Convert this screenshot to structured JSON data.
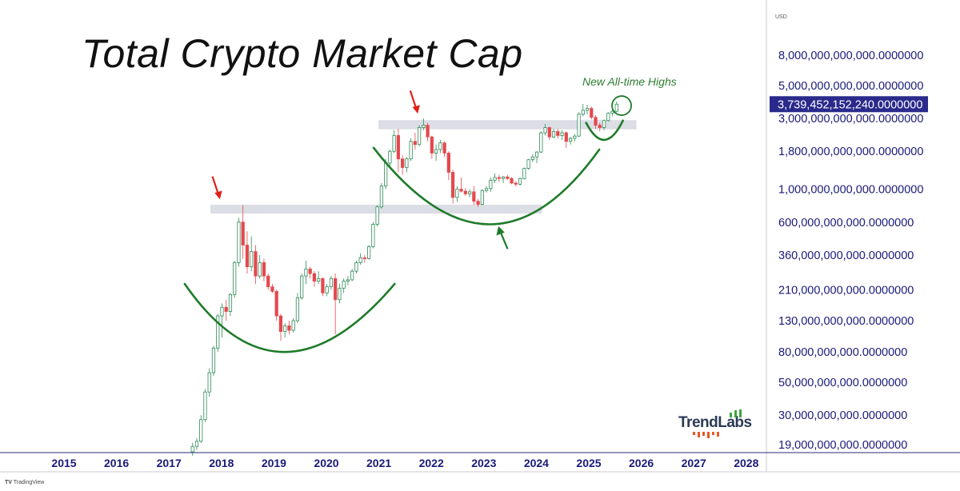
{
  "title": "Total Crypto Market Cap",
  "annotation": "New All-time Highs",
  "currency": "USD",
  "footer": "TradingView",
  "watermark": "TrendLabs",
  "colors": {
    "up": "#2e8b57",
    "down": "#e5484d",
    "curve": "#1e7b2a",
    "arrow_red": "#e0201b",
    "arrow_green": "#1e7b2a",
    "axis_text": "#1a1a7a",
    "price_badge": "#2a2a8c",
    "band": "#d9dbe3"
  },
  "chart_data": {
    "type": "candlestick",
    "title": "Total Crypto Market Cap",
    "interval": "monthly",
    "y_scale": "log",
    "y_ticks": [
      {
        "value": 8000000000000,
        "label": "8,000,000,000,000.0000000"
      },
      {
        "value": 5000000000000,
        "label": "5,000,000,000,000.0000000"
      },
      {
        "value": 3000000000000,
        "label": "3,000,000,000,000.0000000"
      },
      {
        "value": 1800000000000,
        "label": "1,800,000,000,000.0000000"
      },
      {
        "value": 1000000000000,
        "label": "1,000,000,000,000.0000000"
      },
      {
        "value": 600000000000,
        "label": "600,000,000,000.0000000"
      },
      {
        "value": 360000000000,
        "label": "360,000,000,000.0000000"
      },
      {
        "value": 210000000000,
        "label": "210,000,000,000.0000000"
      },
      {
        "value": 130000000000,
        "label": "130,000,000,000.0000000"
      },
      {
        "value": 80000000000,
        "label": "80,000,000,000.0000000"
      },
      {
        "value": 50000000000,
        "label": "50,000,000,000.0000000"
      },
      {
        "value": 30000000000,
        "label": "30,000,000,000.0000000"
      },
      {
        "value": 19000000000,
        "label": "19,000,000,000.0000000"
      }
    ],
    "x_ticks": [
      "2015",
      "2016",
      "2017",
      "2018",
      "2019",
      "2020",
      "2021",
      "2022",
      "2023",
      "2024",
      "2025",
      "2026",
      "2027",
      "2028"
    ],
    "x_range": [
      2015,
      2028
    ],
    "current_price": {
      "value": 3739452152240,
      "label": "3,739,452,152,240.0000000"
    },
    "resistance_bands": [
      {
        "from": "2017.8",
        "to": "2024.1",
        "low": 690000000000,
        "high": 780000000000
      },
      {
        "from": "2021.0",
        "to": "2025.9",
        "low": 2550000000000,
        "high": 2900000000000
      }
    ],
    "annotations": [
      {
        "kind": "arrow-down",
        "color": "red",
        "date": "2017.95",
        "value": 780000000000
      },
      {
        "kind": "arrow-down",
        "color": "red",
        "date": "2021.72",
        "value": 2950000000000
      },
      {
        "kind": "arrow-up",
        "color": "green",
        "date": "2023.3",
        "value": 560000000000
      },
      {
        "kind": "circle",
        "color": "green",
        "date": "2025.58",
        "value": 3750000000000,
        "text": "New All-time Highs"
      }
    ],
    "cup_curves": [
      {
        "points": [
          [
            2017.3,
            230000000000
          ],
          [
            2019.2,
            80000000000
          ],
          [
            2021.3,
            230000000000
          ]
        ]
      },
      {
        "points": [
          [
            2020.9,
            1900000000000
          ],
          [
            2023.1,
            580000000000
          ],
          [
            2025.2,
            1850000000000
          ]
        ]
      },
      {
        "points": [
          [
            2024.95,
            2800000000000
          ],
          [
            2025.3,
            2150000000000
          ],
          [
            2025.65,
            2900000000000
          ]
        ]
      }
    ],
    "candles": [
      {
        "t": 2017.45,
        "o": 17000000000,
        "h": 19500000000,
        "l": 16000000000,
        "c": 18500000000
      },
      {
        "t": 2017.53,
        "o": 18500000000,
        "h": 21000000000,
        "l": 17500000000,
        "c": 20000000000
      },
      {
        "t": 2017.61,
        "o": 20000000000,
        "h": 30000000000,
        "l": 19500000000,
        "c": 28000000000
      },
      {
        "t": 2017.69,
        "o": 28000000000,
        "h": 45000000000,
        "l": 27000000000,
        "c": 43000000000
      },
      {
        "t": 2017.77,
        "o": 43000000000,
        "h": 62000000000,
        "l": 40000000000,
        "c": 58000000000
      },
      {
        "t": 2017.85,
        "o": 58000000000,
        "h": 88000000000,
        "l": 55000000000,
        "c": 85000000000
      },
      {
        "t": 2017.93,
        "o": 85000000000,
        "h": 145000000000,
        "l": 80000000000,
        "c": 140000000000
      },
      {
        "t": 2018.01,
        "o": 140000000000,
        "h": 170000000000,
        "l": 100000000000,
        "c": 160000000000
      },
      {
        "t": 2018.09,
        "o": 160000000000,
        "h": 180000000000,
        "l": 130000000000,
        "c": 150000000000
      },
      {
        "t": 2018.17,
        "o": 150000000000,
        "h": 200000000000,
        "l": 140000000000,
        "c": 195000000000
      },
      {
        "t": 2018.25,
        "o": 195000000000,
        "h": 330000000000,
        "l": 185000000000,
        "c": 320000000000
      },
      {
        "t": 2018.33,
        "o": 320000000000,
        "h": 640000000000,
        "l": 300000000000,
        "c": 600000000000
      },
      {
        "t": 2018.41,
        "o": 600000000000,
        "h": 780000000000,
        "l": 340000000000,
        "c": 420000000000
      },
      {
        "t": 2018.49,
        "o": 420000000000,
        "h": 520000000000,
        "l": 270000000000,
        "c": 300000000000
      },
      {
        "t": 2018.57,
        "o": 300000000000,
        "h": 480000000000,
        "l": 280000000000,
        "c": 380000000000
      },
      {
        "t": 2018.65,
        "o": 380000000000,
        "h": 420000000000,
        "l": 230000000000,
        "c": 260000000000
      },
      {
        "t": 2018.73,
        "o": 260000000000,
        "h": 360000000000,
        "l": 250000000000,
        "c": 320000000000
      },
      {
        "t": 2018.81,
        "o": 320000000000,
        "h": 340000000000,
        "l": 240000000000,
        "c": 260000000000
      },
      {
        "t": 2018.89,
        "o": 260000000000,
        "h": 270000000000,
        "l": 210000000000,
        "c": 220000000000
      },
      {
        "t": 2018.97,
        "o": 220000000000,
        "h": 230000000000,
        "l": 200000000000,
        "c": 205000000000
      },
      {
        "t": 2019.05,
        "o": 205000000000,
        "h": 210000000000,
        "l": 130000000000,
        "c": 140000000000
      },
      {
        "t": 2019.13,
        "o": 140000000000,
        "h": 145000000000,
        "l": 95000000000,
        "c": 110000000000
      },
      {
        "t": 2019.21,
        "o": 110000000000,
        "h": 125000000000,
        "l": 100000000000,
        "c": 120000000000
      },
      {
        "t": 2019.29,
        "o": 120000000000,
        "h": 130000000000,
        "l": 105000000000,
        "c": 112000000000
      },
      {
        "t": 2019.37,
        "o": 112000000000,
        "h": 135000000000,
        "l": 108000000000,
        "c": 130000000000
      },
      {
        "t": 2019.45,
        "o": 130000000000,
        "h": 200000000000,
        "l": 125000000000,
        "c": 185000000000
      },
      {
        "t": 2019.53,
        "o": 185000000000,
        "h": 270000000000,
        "l": 180000000000,
        "c": 260000000000
      },
      {
        "t": 2019.61,
        "o": 260000000000,
        "h": 330000000000,
        "l": 230000000000,
        "c": 290000000000
      },
      {
        "t": 2019.69,
        "o": 290000000000,
        "h": 300000000000,
        "l": 250000000000,
        "c": 270000000000
      },
      {
        "t": 2019.77,
        "o": 270000000000,
        "h": 280000000000,
        "l": 220000000000,
        "c": 240000000000
      },
      {
        "t": 2019.85,
        "o": 240000000000,
        "h": 280000000000,
        "l": 230000000000,
        "c": 250000000000
      },
      {
        "t": 2019.93,
        "o": 250000000000,
        "h": 255000000000,
        "l": 190000000000,
        "c": 200000000000
      },
      {
        "t": 2020.01,
        "o": 200000000000,
        "h": 230000000000,
        "l": 190000000000,
        "c": 220000000000
      },
      {
        "t": 2020.09,
        "o": 220000000000,
        "h": 260000000000,
        "l": 210000000000,
        "c": 250000000000
      },
      {
        "t": 2020.17,
        "o": 250000000000,
        "h": 270000000000,
        "l": 105000000000,
        "c": 180000000000
      },
      {
        "t": 2020.25,
        "o": 180000000000,
        "h": 230000000000,
        "l": 170000000000,
        "c": 215000000000
      },
      {
        "t": 2020.33,
        "o": 215000000000,
        "h": 250000000000,
        "l": 200000000000,
        "c": 240000000000
      },
      {
        "t": 2020.41,
        "o": 240000000000,
        "h": 260000000000,
        "l": 225000000000,
        "c": 245000000000
      },
      {
        "t": 2020.49,
        "o": 245000000000,
        "h": 290000000000,
        "l": 240000000000,
        "c": 280000000000
      },
      {
        "t": 2020.57,
        "o": 280000000000,
        "h": 330000000000,
        "l": 270000000000,
        "c": 320000000000
      },
      {
        "t": 2020.65,
        "o": 320000000000,
        "h": 370000000000,
        "l": 310000000000,
        "c": 345000000000
      },
      {
        "t": 2020.73,
        "o": 345000000000,
        "h": 360000000000,
        "l": 320000000000,
        "c": 340000000000
      },
      {
        "t": 2020.81,
        "o": 340000000000,
        "h": 420000000000,
        "l": 335000000000,
        "c": 410000000000
      },
      {
        "t": 2020.89,
        "o": 410000000000,
        "h": 600000000000,
        "l": 400000000000,
        "c": 580000000000
      },
      {
        "t": 2020.97,
        "o": 580000000000,
        "h": 780000000000,
        "l": 560000000000,
        "c": 760000000000
      },
      {
        "t": 2021.05,
        "o": 760000000000,
        "h": 1100000000000,
        "l": 740000000000,
        "c": 1050000000000
      },
      {
        "t": 2021.13,
        "o": 1050000000000,
        "h": 1600000000000,
        "l": 1000000000000,
        "c": 1500000000000
      },
      {
        "t": 2021.21,
        "o": 1500000000000,
        "h": 1850000000000,
        "l": 1400000000000,
        "c": 1800000000000
      },
      {
        "t": 2021.29,
        "o": 1800000000000,
        "h": 2500000000000,
        "l": 1750000000000,
        "c": 2300000000000
      },
      {
        "t": 2021.37,
        "o": 2300000000000,
        "h": 2550000000000,
        "l": 1300000000000,
        "c": 1600000000000
      },
      {
        "t": 2021.45,
        "o": 1600000000000,
        "h": 1700000000000,
        "l": 1250000000000,
        "c": 1400000000000
      },
      {
        "t": 2021.53,
        "o": 1400000000000,
        "h": 1650000000000,
        "l": 1300000000000,
        "c": 1600000000000
      },
      {
        "t": 2021.61,
        "o": 1600000000000,
        "h": 2200000000000,
        "l": 1550000000000,
        "c": 2100000000000
      },
      {
        "t": 2021.69,
        "o": 2100000000000,
        "h": 2400000000000,
        "l": 1850000000000,
        "c": 2000000000000
      },
      {
        "t": 2021.77,
        "o": 2000000000000,
        "h": 2700000000000,
        "l": 1950000000000,
        "c": 2600000000000
      },
      {
        "t": 2021.85,
        "o": 2600000000000,
        "h": 3000000000000,
        "l": 2500000000000,
        "c": 2700000000000
      },
      {
        "t": 2021.93,
        "o": 2700000000000,
        "h": 2800000000000,
        "l": 2100000000000,
        "c": 2250000000000
      },
      {
        "t": 2022.01,
        "o": 2250000000000,
        "h": 2300000000000,
        "l": 1600000000000,
        "c": 1750000000000
      },
      {
        "t": 2022.09,
        "o": 1750000000000,
        "h": 2000000000000,
        "l": 1550000000000,
        "c": 1850000000000
      },
      {
        "t": 2022.17,
        "o": 1850000000000,
        "h": 2150000000000,
        "l": 1750000000000,
        "c": 2050000000000
      },
      {
        "t": 2022.25,
        "o": 2050000000000,
        "h": 2100000000000,
        "l": 1650000000000,
        "c": 1750000000000
      },
      {
        "t": 2022.33,
        "o": 1750000000000,
        "h": 1800000000000,
        "l": 1150000000000,
        "c": 1300000000000
      },
      {
        "t": 2022.41,
        "o": 1300000000000,
        "h": 1350000000000,
        "l": 800000000000,
        "c": 880000000000
      },
      {
        "t": 2022.49,
        "o": 880000000000,
        "h": 1050000000000,
        "l": 820000000000,
        "c": 1000000000000
      },
      {
        "t": 2022.57,
        "o": 1000000000000,
        "h": 1200000000000,
        "l": 950000000000,
        "c": 970000000000
      },
      {
        "t": 2022.65,
        "o": 970000000000,
        "h": 1020000000000,
        "l": 900000000000,
        "c": 930000000000
      },
      {
        "t": 2022.73,
        "o": 930000000000,
        "h": 1000000000000,
        "l": 880000000000,
        "c": 960000000000
      },
      {
        "t": 2022.81,
        "o": 960000000000,
        "h": 1050000000000,
        "l": 780000000000,
        "c": 830000000000
      },
      {
        "t": 2022.89,
        "o": 830000000000,
        "h": 860000000000,
        "l": 760000000000,
        "c": 790000000000
      },
      {
        "t": 2022.97,
        "o": 790000000000,
        "h": 1000000000000,
        "l": 780000000000,
        "c": 980000000000
      },
      {
        "t": 2023.05,
        "o": 980000000000,
        "h": 1050000000000,
        "l": 950000000000,
        "c": 1010000000000
      },
      {
        "t": 2023.13,
        "o": 1010000000000,
        "h": 1200000000000,
        "l": 960000000000,
        "c": 1150000000000
      },
      {
        "t": 2023.21,
        "o": 1150000000000,
        "h": 1280000000000,
        "l": 1100000000000,
        "c": 1200000000000
      },
      {
        "t": 2023.29,
        "o": 1200000000000,
        "h": 1250000000000,
        "l": 1120000000000,
        "c": 1180000000000
      },
      {
        "t": 2023.37,
        "o": 1180000000000,
        "h": 1230000000000,
        "l": 1100000000000,
        "c": 1210000000000
      },
      {
        "t": 2023.45,
        "o": 1210000000000,
        "h": 1250000000000,
        "l": 1150000000000,
        "c": 1180000000000
      },
      {
        "t": 2023.53,
        "o": 1180000000000,
        "h": 1210000000000,
        "l": 1080000000000,
        "c": 1100000000000
      },
      {
        "t": 2023.61,
        "o": 1100000000000,
        "h": 1130000000000,
        "l": 1040000000000,
        "c": 1080000000000
      },
      {
        "t": 2023.69,
        "o": 1080000000000,
        "h": 1200000000000,
        "l": 1060000000000,
        "c": 1180000000000
      },
      {
        "t": 2023.77,
        "o": 1180000000000,
        "h": 1400000000000,
        "l": 1160000000000,
        "c": 1380000000000
      },
      {
        "t": 2023.85,
        "o": 1380000000000,
        "h": 1600000000000,
        "l": 1350000000000,
        "c": 1580000000000
      },
      {
        "t": 2023.93,
        "o": 1580000000000,
        "h": 1720000000000,
        "l": 1520000000000,
        "c": 1650000000000
      },
      {
        "t": 2024.01,
        "o": 1650000000000,
        "h": 1800000000000,
        "l": 1500000000000,
        "c": 1780000000000
      },
      {
        "t": 2024.09,
        "o": 1780000000000,
        "h": 2450000000000,
        "l": 1750000000000,
        "c": 2400000000000
      },
      {
        "t": 2024.17,
        "o": 2400000000000,
        "h": 2750000000000,
        "l": 2300000000000,
        "c": 2600000000000
      },
      {
        "t": 2024.25,
        "o": 2600000000000,
        "h": 2650000000000,
        "l": 2150000000000,
        "c": 2250000000000
      },
      {
        "t": 2024.33,
        "o": 2250000000000,
        "h": 2550000000000,
        "l": 2200000000000,
        "c": 2450000000000
      },
      {
        "t": 2024.41,
        "o": 2450000000000,
        "h": 2550000000000,
        "l": 2200000000000,
        "c": 2300000000000
      },
      {
        "t": 2024.49,
        "o": 2300000000000,
        "h": 2500000000000,
        "l": 2150000000000,
        "c": 2400000000000
      },
      {
        "t": 2024.57,
        "o": 2400000000000,
        "h": 2450000000000,
        "l": 1900000000000,
        "c": 2100000000000
      },
      {
        "t": 2024.65,
        "o": 2100000000000,
        "h": 2250000000000,
        "l": 2000000000000,
        "c": 2200000000000
      },
      {
        "t": 2024.73,
        "o": 2200000000000,
        "h": 2350000000000,
        "l": 2100000000000,
        "c": 2280000000000
      },
      {
        "t": 2024.81,
        "o": 2280000000000,
        "h": 3300000000000,
        "l": 2250000000000,
        "c": 3200000000000
      },
      {
        "t": 2024.89,
        "o": 3200000000000,
        "h": 3750000000000,
        "l": 3100000000000,
        "c": 3400000000000
      },
      {
        "t": 2024.97,
        "o": 3400000000000,
        "h": 3700000000000,
        "l": 3200000000000,
        "c": 3500000000000
      },
      {
        "t": 2025.05,
        "o": 3500000000000,
        "h": 3600000000000,
        "l": 2950000000000,
        "c": 3050000000000
      },
      {
        "t": 2025.13,
        "o": 3050000000000,
        "h": 3150000000000,
        "l": 2550000000000,
        "c": 2700000000000
      },
      {
        "t": 2025.21,
        "o": 2700000000000,
        "h": 2800000000000,
        "l": 2450000000000,
        "c": 2600000000000
      },
      {
        "t": 2025.29,
        "o": 2600000000000,
        "h": 2950000000000,
        "l": 2500000000000,
        "c": 2900000000000
      },
      {
        "t": 2025.37,
        "o": 2900000000000,
        "h": 3300000000000,
        "l": 2850000000000,
        "c": 3250000000000
      },
      {
        "t": 2025.45,
        "o": 3250000000000,
        "h": 3450000000000,
        "l": 3100000000000,
        "c": 3350000000000
      },
      {
        "t": 2025.53,
        "o": 3350000000000,
        "h": 3900000000000,
        "l": 3300000000000,
        "c": 3740000000000
      }
    ]
  }
}
